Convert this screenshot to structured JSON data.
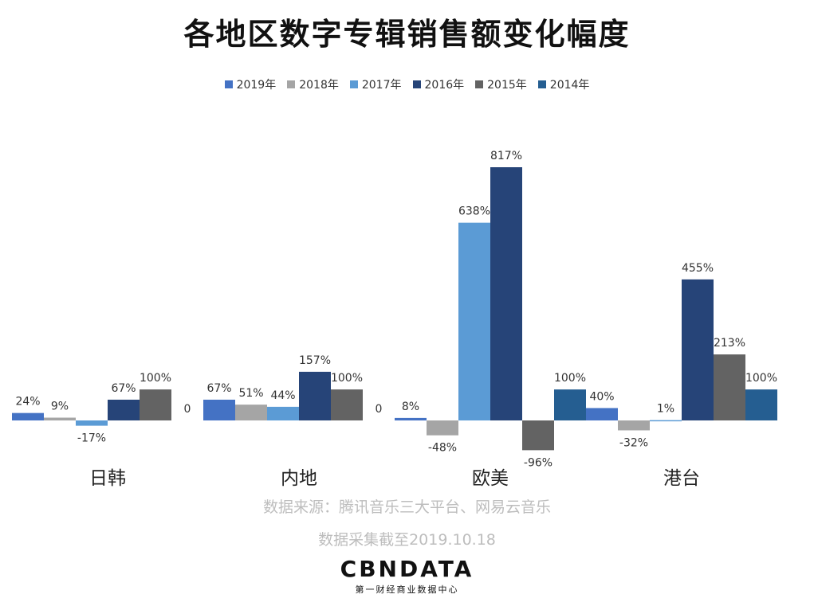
{
  "header": {
    "title": "各地区数字专辑销售额变化幅度"
  },
  "chart_data": {
    "type": "bar",
    "categories": [
      "日韩",
      "内地",
      "欧美",
      "港台"
    ],
    "series": [
      {
        "name": "2019年",
        "color": "#4472C4",
        "values": [
          24,
          67,
          8,
          40
        ],
        "labels": [
          "24%",
          "67%",
          "8%",
          "40%"
        ]
      },
      {
        "name": "2018年",
        "color": "#A5A5A5",
        "values": [
          9,
          51,
          -48,
          -32
        ],
        "labels": [
          "9%",
          "51%",
          "-48%",
          "-32%"
        ]
      },
      {
        "name": "2017年",
        "color": "#5B9BD5",
        "values": [
          -17,
          44,
          638,
          1
        ],
        "labels": [
          "-17%",
          "44%",
          "638%",
          "1%"
        ]
      },
      {
        "name": "2016年",
        "color": "#264478",
        "values": [
          67,
          157,
          817,
          455
        ],
        "labels": [
          "67%",
          "157%",
          "817%",
          "455%"
        ]
      },
      {
        "name": "2015年",
        "color": "#636363",
        "values": [
          100,
          100,
          -96,
          213
        ],
        "labels": [
          "100%",
          "100%",
          "-96%",
          "213%"
        ]
      },
      {
        "name": "2014年",
        "color": "#255E91",
        "values": [
          0,
          0,
          100,
          100
        ],
        "labels": [
          "0",
          "0",
          "100%",
          "100%"
        ]
      }
    ],
    "ylim": [
      -150,
      900
    ],
    "grid": false,
    "legend_position": "top"
  },
  "footer": {
    "source": "数据来源：腾讯音乐三大平台、网易云音乐",
    "date": "数据采集截至2019.10.18",
    "brand": "CBNDATA",
    "brand_sub": "第一财经商业数据中心"
  }
}
